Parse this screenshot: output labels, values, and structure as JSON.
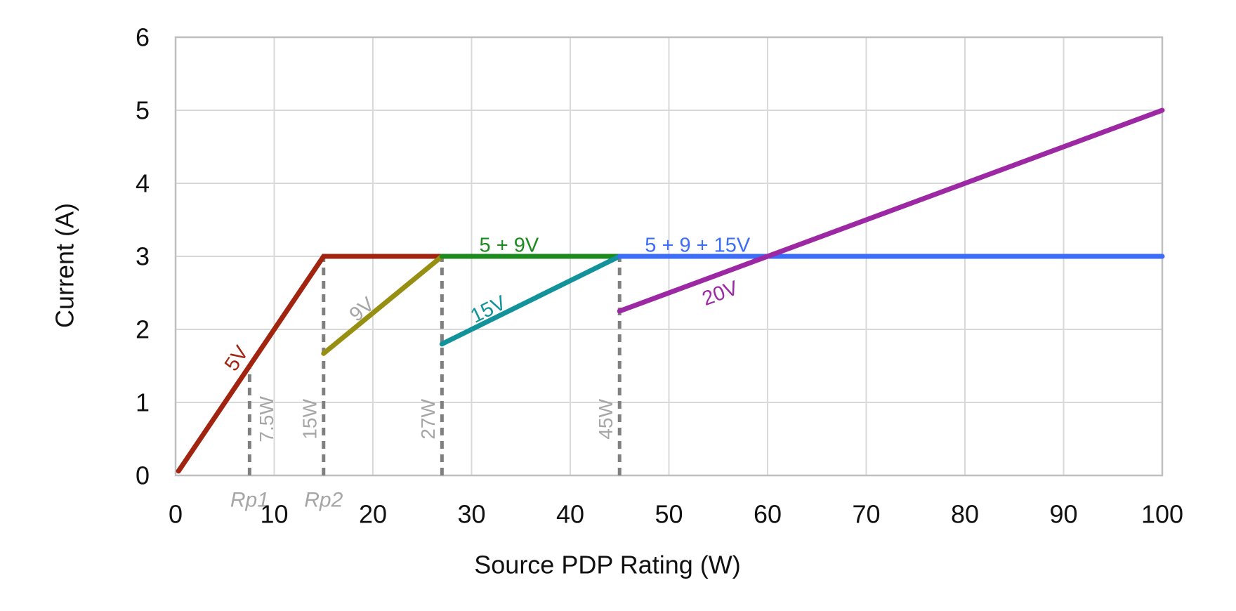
{
  "chart_data": {
    "type": "line",
    "title": "",
    "xlabel": "Source PDP Rating (W)",
    "ylabel": "Current (A)",
    "xlim": [
      0,
      100
    ],
    "ylim": [
      0,
      6
    ],
    "xticks": [
      0,
      10,
      20,
      30,
      40,
      50,
      60,
      70,
      80,
      90,
      100
    ],
    "yticks": [
      0,
      1,
      2,
      3,
      4,
      5,
      6
    ],
    "grid": true,
    "legend_position": "none-inline-labels",
    "style": {
      "grid_color": "#D9D9D9",
      "border_color": "#BFBFBF",
      "tick_text_color": "#111111",
      "axis_title_color": "#111111",
      "guide_color": "#808080",
      "gray_label_color": "#A6A6A6",
      "background": "#FFFFFF"
    },
    "series": [
      {
        "name": "5V",
        "color": "#A0240F",
        "points": [
          [
            0.3,
            0.06
          ],
          [
            15,
            3
          ],
          [
            27,
            3
          ]
        ]
      },
      {
        "name": "9V",
        "color": "#968F11",
        "points": [
          [
            15,
            1.67
          ],
          [
            27,
            3
          ]
        ]
      },
      {
        "name": "5 + 9V",
        "color": "#1C8A1C",
        "points": [
          [
            27,
            3
          ],
          [
            45,
            3
          ]
        ]
      },
      {
        "name": "15V",
        "color": "#12939B",
        "points": [
          [
            27,
            1.8
          ],
          [
            45,
            3
          ]
        ]
      },
      {
        "name": "5 + 9 + 15V",
        "color": "#3B6DF6",
        "points": [
          [
            45,
            3
          ],
          [
            100,
            3
          ]
        ]
      },
      {
        "name": "20V",
        "color": "#9D28A4",
        "points": [
          [
            45,
            2.25
          ],
          [
            100,
            5
          ]
        ]
      }
    ],
    "series_labels": [
      {
        "text": "5V",
        "x": 6.2,
        "y": 1.6,
        "angle": -56,
        "color": "#A0240F"
      },
      {
        "text": "9V",
        "x": 18.9,
        "y": 2.27,
        "angle": -40,
        "color": "#A6A6A6"
      },
      {
        "text": "5 + 9V",
        "x": 33.8,
        "y": 3.15,
        "angle": 0,
        "color": "#1C8A1C"
      },
      {
        "text": "15V",
        "x": 31.7,
        "y": 2.27,
        "angle": -26,
        "color": "#12939B"
      },
      {
        "text": "5 + 9 + 15V",
        "x": 52.9,
        "y": 3.15,
        "angle": 0,
        "color": "#3B6DF6"
      },
      {
        "text": "20V",
        "x": 55.2,
        "y": 2.49,
        "angle": -20,
        "color": "#9D28A4"
      }
    ],
    "guides": [
      {
        "x": 7.5,
        "y_top": 1.5,
        "label": "7.5W",
        "side": "right",
        "sub_label": "Rp1"
      },
      {
        "x": 15,
        "y_top": 3,
        "label": "15W",
        "side": "left",
        "sub_label": "Rp2"
      },
      {
        "x": 27,
        "y_top": 3,
        "label": "27W",
        "side": "left",
        "sub_label": ""
      },
      {
        "x": 45,
        "y_top": 3,
        "label": "45W",
        "side": "left",
        "sub_label": ""
      }
    ],
    "guide_label_y_amps": 0.77
  }
}
